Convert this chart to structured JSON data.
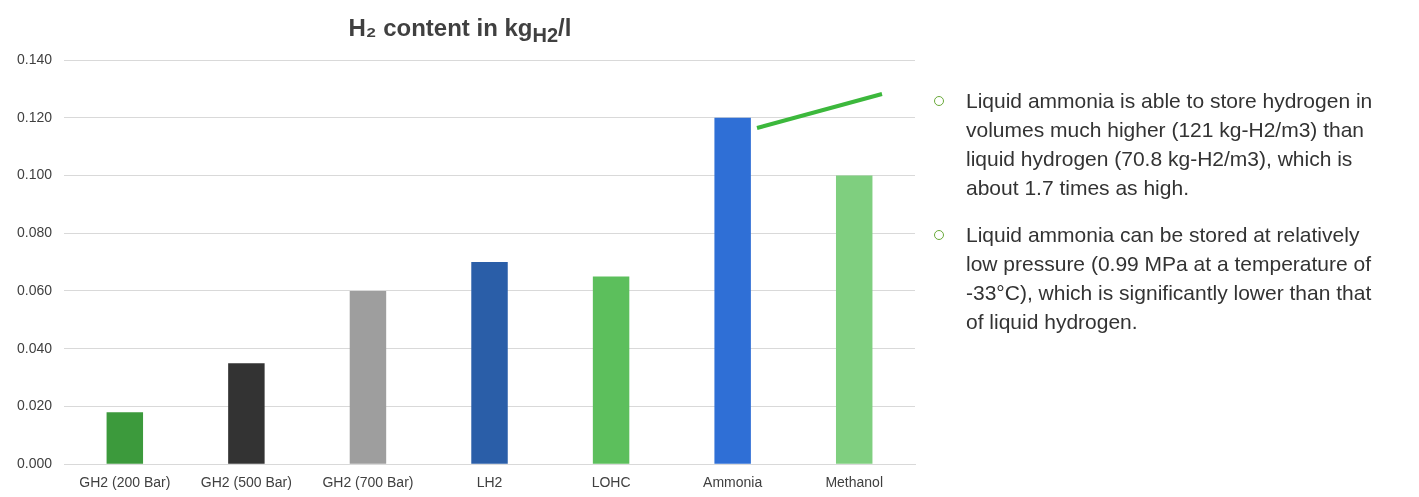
{
  "chart_data": {
    "type": "bar",
    "title": "H₂ content in kg$_{H2}$/l",
    "categories": [
      "GH2 (200 Bar)",
      "GH2 (500 Bar)",
      "GH2 (700 Bar)",
      "LH2",
      "LOHC",
      "Ammonia",
      "Methanol"
    ],
    "values": [
      0.018,
      0.035,
      0.06,
      0.07,
      0.065,
      0.12,
      0.1
    ],
    "colors": [
      "#3c9a3c",
      "#333333",
      "#9e9e9e",
      "#2a5ea8",
      "#5cbf5c",
      "#2f6fd6",
      "#7fcf7f"
    ],
    "ylim": [
      0,
      0.14
    ],
    "yticks": [
      {
        "value": 0,
        "label": "0.000"
      },
      {
        "value": 0.02,
        "label": "0.020"
      },
      {
        "value": 0.04,
        "label": "0.040"
      },
      {
        "value": 0.06,
        "label": "0.060"
      },
      {
        "value": 0.08,
        "label": "0.080"
      },
      {
        "value": 0.1,
        "label": "0.100"
      },
      {
        "value": 0.12,
        "label": "0.120"
      },
      {
        "value": 0.14,
        "label": "0.140"
      }
    ],
    "grid": "y",
    "annotations": [
      "Liquid ammonia is able to store hydrogen in volumes much higher (121 kg-H2/m3) than liquid hydrogen (70.8 kg-H2/m3), which is about 1.7 times as high.",
      "Liquid ammonia can be stored at relatively low pressure (0.99 MPa at a temperature of -33°C), which is significantly lower than that of liquid hydrogen."
    ]
  }
}
